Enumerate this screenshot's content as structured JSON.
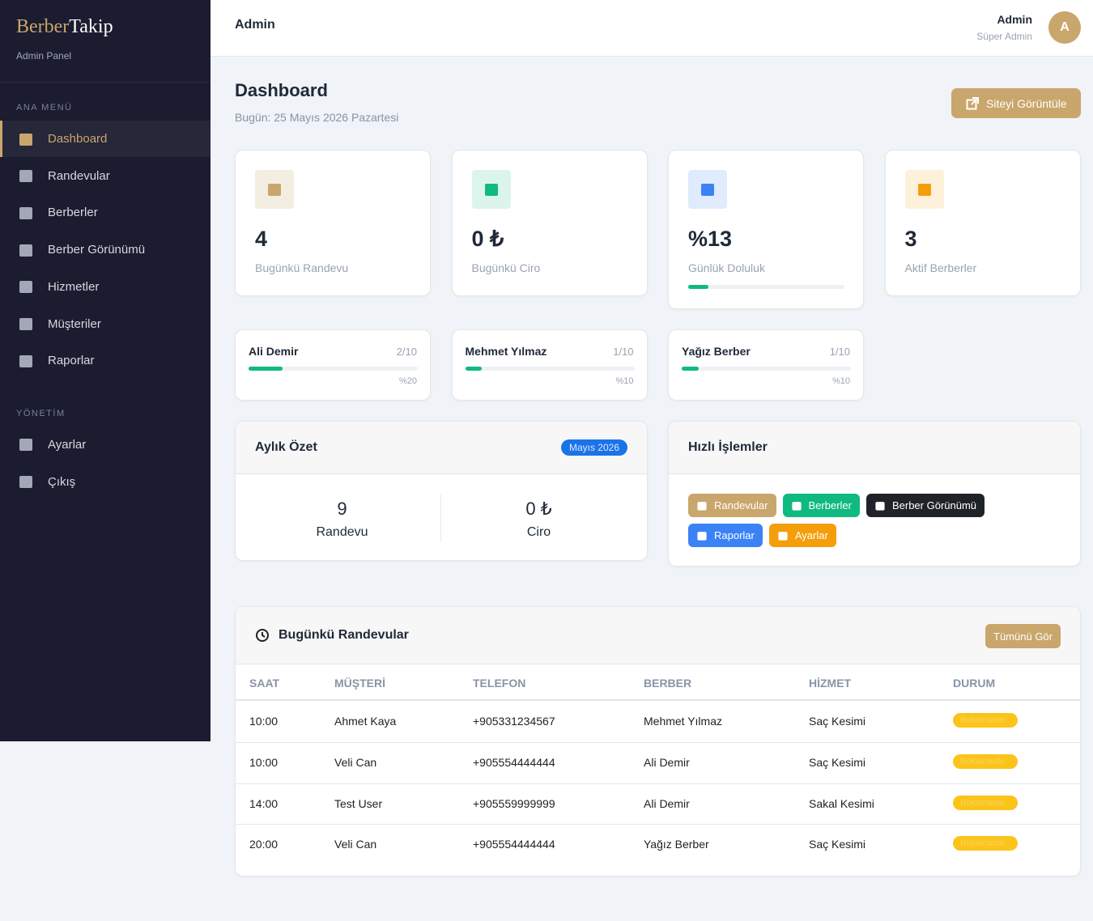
{
  "brand": {
    "name_first": "Berber",
    "name_second": "Takip",
    "subtitle": "Admin Panel"
  },
  "sidebar": {
    "sections": [
      {
        "title": "ANA MENÜ",
        "items": [
          {
            "label": "Dashboard",
            "active": true
          },
          {
            "label": "Randevular"
          },
          {
            "label": "Berberler"
          },
          {
            "label": "Berber Görünümü"
          },
          {
            "label": "Hizmetler"
          },
          {
            "label": "Müşteriler"
          },
          {
            "label": "Raporlar"
          }
        ]
      },
      {
        "title": "YÖNETİM",
        "items": [
          {
            "label": "Ayarlar"
          },
          {
            "label": "Çıkış"
          }
        ]
      }
    ]
  },
  "topbar": {
    "title": "Admin",
    "user_name": "Admin",
    "user_role": "Süper Admin",
    "avatar": "A"
  },
  "header": {
    "title": "Dashboard",
    "date": "Bugün: 25 Mayıs 2026 Pazartesi",
    "button": "Siteyi Görüntüle"
  },
  "stats": [
    {
      "value": "4",
      "label": "Bugünkü Randevu",
      "color": "#c9a66b",
      "bg": "#f4ede2"
    },
    {
      "value": "0 ₺",
      "label": "Bugünkü Ciro",
      "color": "#10b981",
      "bg": "#dcf5ec"
    },
    {
      "value": "%13",
      "label": "Günlük Doluluk",
      "color": "#3b82f6",
      "bg": "#e0ebfd",
      "progress": 13
    },
    {
      "value": "3",
      "label": "Aktif Berberler",
      "color": "#f59e0b",
      "bg": "#fdf1dc"
    }
  ],
  "barbers": [
    {
      "name": "Ali Demir",
      "count": "2/10",
      "percent_label": "%20",
      "percent": 20
    },
    {
      "name": "Mehmet Yılmaz",
      "count": "1/10",
      "percent_label": "%10",
      "percent": 10
    },
    {
      "name": "Yağız Berber",
      "count": "1/10",
      "percent_label": "%10",
      "percent": 10
    }
  ],
  "monthly": {
    "title": "Aylık Özet",
    "badge": "Mayıs 2026",
    "items": [
      {
        "value": "9",
        "label": "Randevu"
      },
      {
        "value": "0 ₺",
        "label": "Ciro"
      }
    ]
  },
  "quick": {
    "title": "Hızlı İşlemler",
    "buttons": [
      {
        "label": "Randevular",
        "color": "#c9a66b"
      },
      {
        "label": "Berberler",
        "color": "#10b981"
      },
      {
        "label": "Berber Görünümü",
        "color": "#1f2329"
      },
      {
        "label": "Raporlar",
        "color": "#3b82f6"
      },
      {
        "label": "Ayarlar",
        "color": "#f59e0b"
      }
    ]
  },
  "appointments": {
    "title": "Bugünkü Randevular",
    "button": "Tümünü Gör",
    "columns": [
      "SAAT",
      "MÜŞTERİ",
      "TELEFON",
      "BERBER",
      "HİZMET",
      "DURUM"
    ],
    "rows": [
      [
        "10:00",
        "Ahmet Kaya",
        "+905331234567",
        "Mehmet Yılmaz",
        "Saç Kesimi",
        "Beklemede"
      ],
      [
        "10:00",
        "Veli Can",
        "+905554444444",
        "Ali Demir",
        "Saç Kesimi",
        "Beklemede"
      ],
      [
        "14:00",
        "Test User",
        "+905559999999",
        "Ali Demir",
        "Sakal Kesimi",
        "Beklemede"
      ],
      [
        "20:00",
        "Veli Can",
        "+905554444444",
        "Yağız Berber",
        "Saç Kesimi",
        "Beklemede"
      ]
    ]
  }
}
